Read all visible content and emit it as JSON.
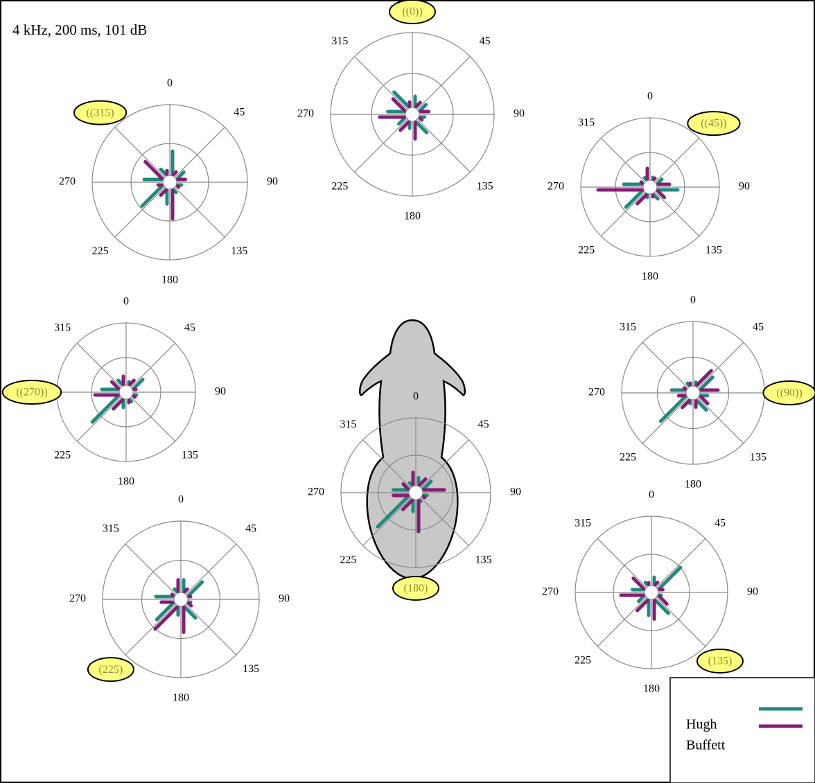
{
  "title": "4 kHz, 200 ms, 101 dB",
  "legend": {
    "series": [
      {
        "name": "Hugh",
        "color": "#1f8a7c"
      },
      {
        "name": "Buffett",
        "color": "#851c75"
      }
    ]
  },
  "chart_data": [
    {
      "type": "polar",
      "rlim": [
        0,
        1
      ],
      "rticks": [
        0.5,
        1
      ],
      "categories": [
        0,
        45,
        90,
        135,
        180,
        225,
        270,
        {
          "value": 315,
          "label": "((315)"
        }
      ],
      "series": [
        {
          "values": [
            0.4,
            0.22,
            0.15,
            0.15,
            0.28,
            0.47,
            0.33,
            0.2
          ]
        },
        {
          "values": [
            0.15,
            0.15,
            0.2,
            0.12,
            0.47,
            0.2,
            0.15,
            0.41
          ]
        }
      ]
    },
    {
      "type": "polar",
      "rlim": [
        0,
        1
      ],
      "rticks": [
        0.5,
        1
      ],
      "categories": [
        {
          "value": 0,
          "label": "((0))"
        },
        45,
        90,
        135,
        180,
        225,
        270,
        315
      ],
      "series": [
        {
          "values": [
            0.22,
            0.2,
            0.15,
            0.28,
            0.17,
            0.2,
            0.3,
            0.35
          ]
        },
        {
          "values": [
            0.15,
            0.17,
            0.2,
            0.13,
            0.3,
            0.24,
            0.4,
            0.3
          ]
        }
      ]
    },
    {
      "type": "polar",
      "rlim": [
        0,
        1
      ],
      "rticks": [
        0.5,
        1
      ],
      "categories": [
        0,
        {
          "value": 45,
          "label": "((45))"
        },
        90,
        135,
        180,
        225,
        270,
        315
      ],
      "series": [
        {
          "values": [
            0.1,
            0.2,
            0.4,
            0.2,
            0.15,
            0.45,
            0.38,
            0.15
          ]
        },
        {
          "values": [
            0.27,
            0.13,
            0.28,
            0.25,
            0.12,
            0.3,
            0.75,
            0.12
          ]
        }
      ]
    },
    {
      "type": "polar",
      "rlim": [
        0,
        1
      ],
      "rticks": [
        0.5,
        1
      ],
      "categories": [
        0,
        45,
        90,
        135,
        180,
        225,
        {
          "value": 270,
          "label": "((270))"
        },
        315
      ],
      "series": [
        {
          "values": [
            0.15,
            0.3,
            0.15,
            0.15,
            0.22,
            0.65,
            0.35,
            0.2
          ]
        },
        {
          "values": [
            0.23,
            0.2,
            0.12,
            0.12,
            0.15,
            0.3,
            0.45,
            0.25
          ]
        }
      ]
    },
    {
      "type": "polar",
      "rlim": [
        0,
        1
      ],
      "rticks": [
        0.5,
        1
      ],
      "categories": [
        0,
        45,
        {
          "value": 90,
          "label": "((90))"
        },
        135,
        180,
        225,
        270,
        315
      ],
      "series": [
        {
          "values": [
            0.15,
            0.35,
            0.2,
            0.3,
            0.15,
            0.6,
            0.3,
            0.15
          ]
        },
        {
          "values": [
            0.12,
            0.4,
            0.35,
            0.25,
            0.2,
            0.25,
            0.2,
            0.12
          ]
        }
      ]
    },
    {
      "type": "polar",
      "rlim": [
        0,
        1
      ],
      "rticks": [
        0.5,
        1
      ],
      "categories": [
        0,
        45,
        90,
        135,
        180,
        {
          "value": 225,
          "label": "(225)"
        },
        270,
        315
      ],
      "series": [
        {
          "values": [
            0.25,
            0.35,
            0.12,
            0.3,
            0.2,
            0.4,
            0.32,
            0.15
          ]
        },
        {
          "values": [
            0.25,
            0.15,
            0.12,
            0.15,
            0.42,
            0.5,
            0.25,
            0.12
          ]
        }
      ]
    },
    {
      "type": "polar",
      "rlim": [
        0,
        1
      ],
      "rticks": [
        0.5,
        1
      ],
      "categories": [
        0,
        45,
        90,
        135,
        {
          "value": 180,
          "label": "(180)"
        },
        225,
        270,
        315
      ],
      "series": [
        {
          "values": [
            0.2,
            0.25,
            0.15,
            0.12,
            0.25,
            0.68,
            0.3,
            0.15
          ]
        },
        {
          "values": [
            0.27,
            0.22,
            0.38,
            0.12,
            0.52,
            0.28,
            0.3,
            0.2
          ]
        }
      ]
    },
    {
      "type": "polar",
      "rlim": [
        0,
        1
      ],
      "rticks": [
        0.5,
        1
      ],
      "categories": [
        0,
        45,
        90,
        {
          "value": 135,
          "label": "(135)"
        },
        180,
        225,
        270,
        315
      ],
      "series": [
        {
          "values": [
            0.2,
            0.5,
            0.12,
            0.35,
            0.3,
            0.2,
            0.25,
            0.15
          ]
        },
        {
          "values": [
            0.12,
            0.15,
            0.15,
            0.25,
            0.35,
            0.3,
            0.4,
            0.3
          ]
        }
      ]
    }
  ]
}
